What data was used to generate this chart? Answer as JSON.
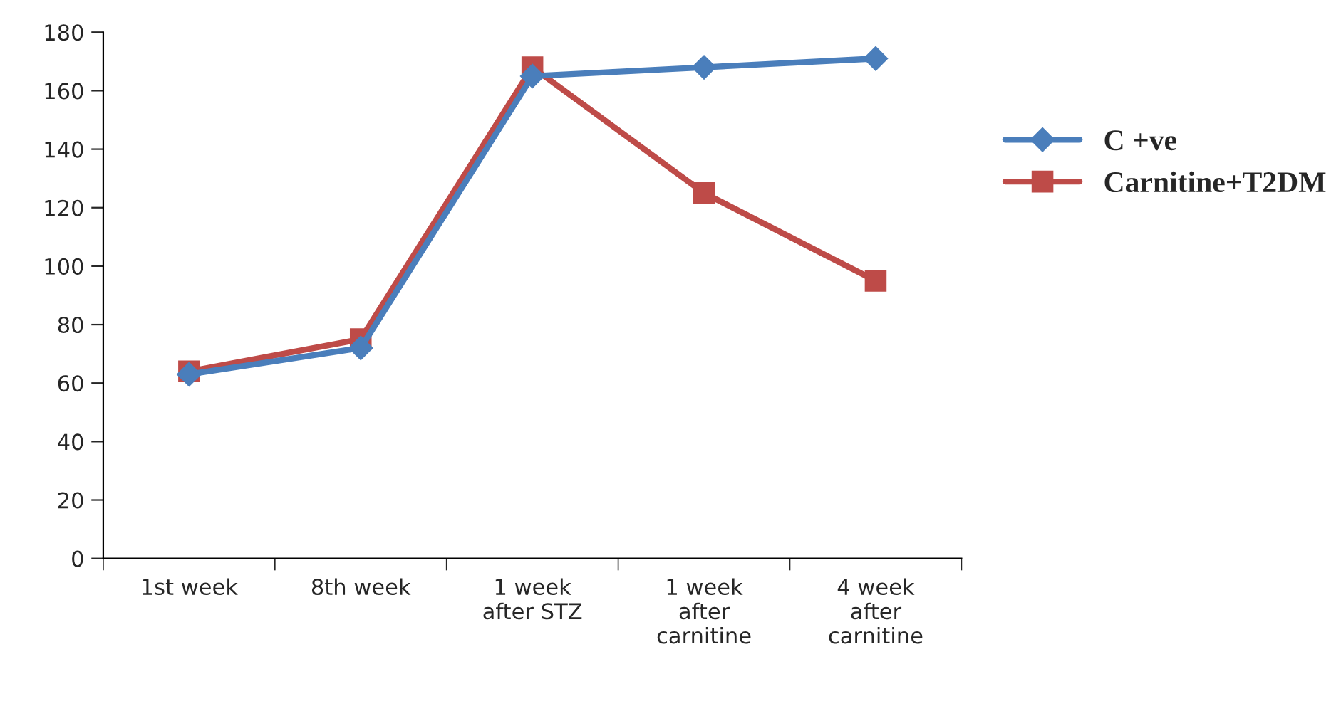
{
  "chart_data": {
    "type": "line",
    "categories": [
      "1st week",
      "8th week",
      "1 week\nafter STZ",
      "1 week\nafter\ncarnitine",
      "4 week\nafter\ncarnitine"
    ],
    "series": [
      {
        "name": "C +ve",
        "color": "#4a7ebb",
        "values": [
          63,
          72,
          165,
          168,
          171
        ],
        "marker": "diamond"
      },
      {
        "name": "Carnitine+T2DM",
        "color": "#be4b48",
        "values": [
          64,
          75,
          168,
          125,
          95
        ],
        "marker": "square"
      }
    ],
    "ylim": [
      0,
      180
    ],
    "yticks": [
      0,
      20,
      40,
      60,
      80,
      100,
      120,
      140,
      160,
      180
    ],
    "grid": false,
    "legend": "right",
    "line_style": "solid"
  }
}
